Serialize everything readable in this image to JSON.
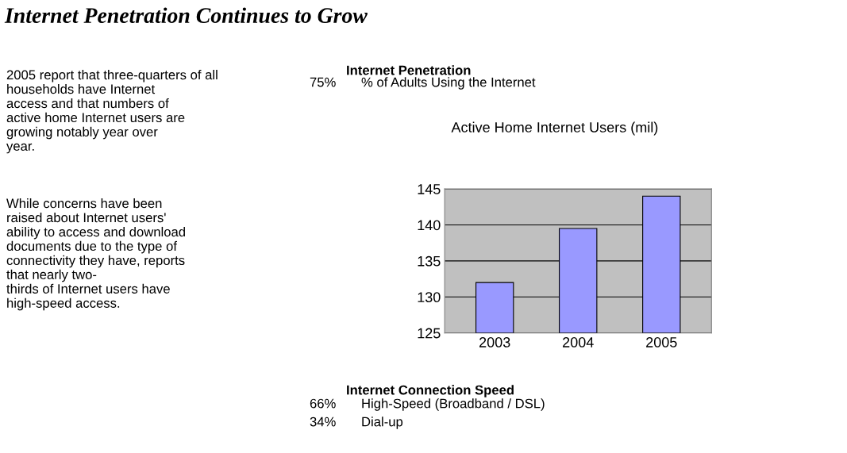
{
  "chart_data": [
    {
      "type": "other",
      "title": "Internet Penetration Continues to Grow",
      "annotations": [
        "2005 report that three-quarters of all\nhouseholds have Internet\naccess and that numbers of\nactive home Internet users are\ngrowing notably year over\nyear.",
        "While concerns have been\nraised about Internet users'\nability to access and download\ndocuments due to the type of\nconnectivity they have, reports\nthat nearly two-\nthirds of Internet users have\nhigh-speed access.",
        "Internet Penetration",
        "75%",
        "% of Adults Using the Internet",
        "Internet Connection Speed",
        "66%",
        "High-Speed (Broadband / DSL)",
        "34%",
        "Dial-up"
      ]
    },
    {
      "type": "bar",
      "title": "Active Home Internet Users (mil)",
      "categories": [
        "2003",
        "2004",
        "2005"
      ],
      "values": [
        132,
        139.5,
        144
      ],
      "color": "#9999ff",
      "ylim": [
        125,
        145
      ],
      "yticks": [
        125,
        130,
        135,
        140,
        145
      ],
      "grid": "y"
    }
  ]
}
